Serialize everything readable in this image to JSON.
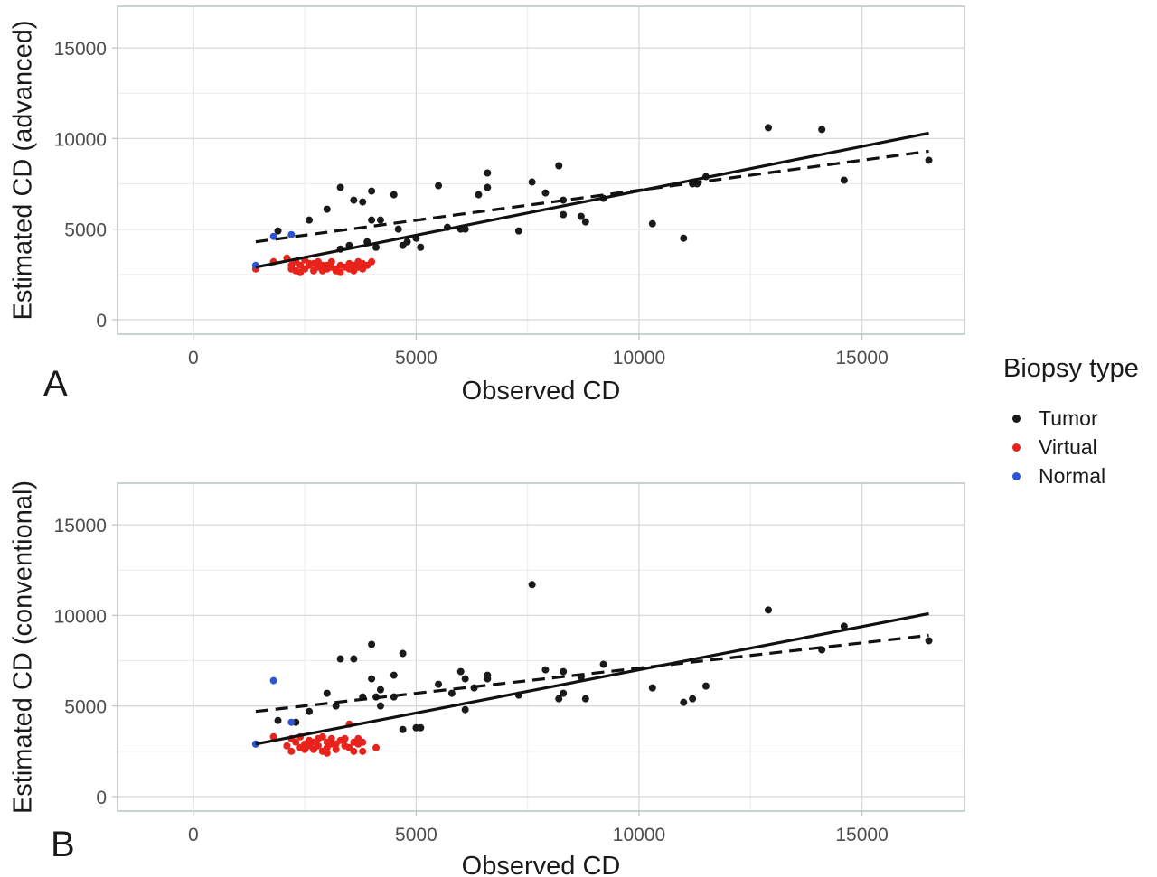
{
  "legend": {
    "title": "Biopsy type",
    "items": [
      {
        "label": "Tumor",
        "color": "#1a1a1a"
      },
      {
        "label": "Virtual",
        "color": "#e8231b"
      },
      {
        "label": "Normal",
        "color": "#2b55d6"
      }
    ]
  },
  "chart_data": [
    {
      "type": "scatter",
      "panel_label": "A",
      "xlabel": "Observed CD",
      "ylabel": "Estimated CD (advanced)",
      "xlim": [
        -1700,
        17300
      ],
      "ylim": [
        -800,
        17300
      ],
      "xticks": [
        0,
        5000,
        10000,
        15000
      ],
      "yticks": [
        0,
        5000,
        10000,
        15000
      ],
      "grid": true,
      "legend_position": "right",
      "series": [
        {
          "name": "Tumor",
          "color": "#1a1a1a",
          "points": [
            [
              1900,
              4900
            ],
            [
              2600,
              5500
            ],
            [
              3000,
              6100
            ],
            [
              3300,
              7300
            ],
            [
              3600,
              6600
            ],
            [
              3800,
              6500
            ],
            [
              4000,
              7100
            ],
            [
              4000,
              5500
            ],
            [
              4200,
              5500
            ],
            [
              4500,
              6900
            ],
            [
              4600,
              5000
            ],
            [
              4700,
              4100
            ],
            [
              4800,
              4300
            ],
            [
              5000,
              4500
            ],
            [
              5100,
              4000
            ],
            [
              3500,
              4100
            ],
            [
              3900,
              4300
            ],
            [
              4100,
              4000
            ],
            [
              3300,
              3900
            ],
            [
              5500,
              7400
            ],
            [
              5700,
              5100
            ],
            [
              6000,
              5000
            ],
            [
              6100,
              5000
            ],
            [
              6400,
              6900
            ],
            [
              6600,
              7300
            ],
            [
              6600,
              8100
            ],
            [
              7300,
              4900
            ],
            [
              7600,
              7600
            ],
            [
              7900,
              7000
            ],
            [
              8200,
              8500
            ],
            [
              8300,
              6600
            ],
            [
              8300,
              5800
            ],
            [
              8700,
              5700
            ],
            [
              8800,
              5400
            ],
            [
              9200,
              6700
            ],
            [
              10300,
              5300
            ],
            [
              11000,
              4500
            ],
            [
              11200,
              7500
            ],
            [
              11300,
              7500
            ],
            [
              11500,
              7900
            ],
            [
              12900,
              10600
            ],
            [
              14100,
              10500
            ],
            [
              14600,
              7700
            ],
            [
              16500,
              8800
            ]
          ]
        },
        {
          "name": "Virtual",
          "color": "#e8231b",
          "points": [
            [
              1400,
              2800
            ],
            [
              1800,
              3200
            ],
            [
              2100,
              3400
            ],
            [
              2200,
              3000
            ],
            [
              2300,
              2700
            ],
            [
              2300,
              3200
            ],
            [
              2400,
              3000
            ],
            [
              2500,
              2800
            ],
            [
              2500,
              3300
            ],
            [
              2600,
              3000
            ],
            [
              2700,
              2700
            ],
            [
              2700,
              3100
            ],
            [
              2800,
              2900
            ],
            [
              2800,
              3200
            ],
            [
              2900,
              2700
            ],
            [
              3000,
              3000
            ],
            [
              3000,
              2800
            ],
            [
              3100,
              2900
            ],
            [
              3100,
              3200
            ],
            [
              3200,
              2700
            ],
            [
              3300,
              3000
            ],
            [
              3400,
              2900
            ],
            [
              3500,
              2800
            ],
            [
              3500,
              3100
            ],
            [
              3600,
              3000
            ],
            [
              3700,
              2900
            ],
            [
              3700,
              3200
            ],
            [
              3800,
              2800
            ],
            [
              3800,
              3100
            ],
            [
              3900,
              3000
            ],
            [
              4000,
              3200
            ],
            [
              2400,
              2600
            ],
            [
              2600,
              3100
            ],
            [
              2900,
              3000
            ],
            [
              3200,
              2800
            ],
            [
              3300,
              2600
            ],
            [
              3600,
              2700
            ],
            [
              2200,
              2800
            ]
          ]
        },
        {
          "name": "Normal",
          "color": "#2b55d6",
          "points": [
            [
              1400,
              3000
            ],
            [
              1800,
              4600
            ],
            [
              2200,
              4700
            ]
          ]
        }
      ],
      "fits": [
        {
          "style": "solid",
          "x": [
            1400,
            16500
          ],
          "y": [
            2900,
            10300
          ]
        },
        {
          "style": "dashed",
          "x": [
            1400,
            16500
          ],
          "y": [
            4300,
            9300
          ]
        }
      ]
    },
    {
      "type": "scatter",
      "panel_label": "B",
      "xlabel": "Observed CD",
      "ylabel": "Estimated CD (conventional)",
      "xlim": [
        -1700,
        17300
      ],
      "ylim": [
        -800,
        17300
      ],
      "xticks": [
        0,
        5000,
        10000,
        15000
      ],
      "yticks": [
        0,
        5000,
        10000,
        15000
      ],
      "grid": true,
      "legend_position": "right",
      "series": [
        {
          "name": "Tumor",
          "color": "#1a1a1a",
          "points": [
            [
              1900,
              4200
            ],
            [
              2300,
              4100
            ],
            [
              2600,
              4700
            ],
            [
              3000,
              5700
            ],
            [
              3200,
              5000
            ],
            [
              3300,
              7600
            ],
            [
              3600,
              7600
            ],
            [
              3800,
              5500
            ],
            [
              4000,
              6500
            ],
            [
              4100,
              5500
            ],
            [
              4000,
              8400
            ],
            [
              4200,
              5900
            ],
            [
              4200,
              5000
            ],
            [
              4500,
              6700
            ],
            [
              4500,
              5500
            ],
            [
              4700,
              7900
            ],
            [
              4700,
              3700
            ],
            [
              5000,
              3800
            ],
            [
              5100,
              3800
            ],
            [
              5500,
              6200
            ],
            [
              5800,
              5700
            ],
            [
              6000,
              6900
            ],
            [
              6100,
              4800
            ],
            [
              6100,
              6500
            ],
            [
              6300,
              6000
            ],
            [
              6600,
              6700
            ],
            [
              6600,
              6500
            ],
            [
              7300,
              5600
            ],
            [
              7600,
              11700
            ],
            [
              7900,
              7000
            ],
            [
              8200,
              5400
            ],
            [
              8300,
              6900
            ],
            [
              8300,
              5700
            ],
            [
              8700,
              6600
            ],
            [
              8800,
              5400
            ],
            [
              9200,
              7300
            ],
            [
              10300,
              6000
            ],
            [
              11000,
              5200
            ],
            [
              11200,
              5400
            ],
            [
              11500,
              6100
            ],
            [
              12900,
              10300
            ],
            [
              14100,
              8100
            ],
            [
              14600,
              9400
            ],
            [
              16500,
              8600
            ]
          ]
        },
        {
          "name": "Virtual",
          "color": "#e8231b",
          "points": [
            [
              1400,
              2900
            ],
            [
              1800,
              3300
            ],
            [
              2100,
              2800
            ],
            [
              2200,
              2500
            ],
            [
              2200,
              3200
            ],
            [
              2300,
              3000
            ],
            [
              2400,
              2700
            ],
            [
              2400,
              3300
            ],
            [
              2500,
              2900
            ],
            [
              2600,
              3100
            ],
            [
              2700,
              2600
            ],
            [
              2700,
              3000
            ],
            [
              2800,
              2800
            ],
            [
              2800,
              3200
            ],
            [
              2900,
              2500
            ],
            [
              3000,
              3000
            ],
            [
              3000,
              2700
            ],
            [
              3100,
              3200
            ],
            [
              3100,
              2900
            ],
            [
              3200,
              2600
            ],
            [
              3300,
              3100
            ],
            [
              3400,
              2800
            ],
            [
              3500,
              4000
            ],
            [
              3500,
              2700
            ],
            [
              3600,
              3000
            ],
            [
              3700,
              2900
            ],
            [
              3700,
              3200
            ],
            [
              3800,
              2500
            ],
            [
              3800,
              3000
            ],
            [
              4100,
              2700
            ],
            [
              2300,
              4100
            ],
            [
              2500,
              2600
            ],
            [
              2900,
              3300
            ],
            [
              3200,
              2900
            ],
            [
              3400,
              3200
            ],
            [
              3600,
              2500
            ],
            [
              2600,
              2800
            ],
            [
              3000,
              2400
            ]
          ]
        },
        {
          "name": "Normal",
          "color": "#2b55d6",
          "points": [
            [
              1400,
              2900
            ],
            [
              1800,
              6400
            ],
            [
              2200,
              4100
            ]
          ]
        }
      ],
      "fits": [
        {
          "style": "solid",
          "x": [
            1400,
            16500
          ],
          "y": [
            2900,
            10100
          ]
        },
        {
          "style": "dashed",
          "x": [
            1400,
            16500
          ],
          "y": [
            4700,
            8900
          ]
        }
      ]
    }
  ]
}
